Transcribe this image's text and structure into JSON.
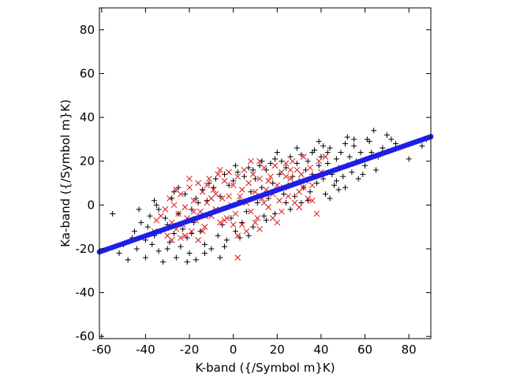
{
  "chart_data": {
    "type": "scatter",
    "xlabel": "K-band ({/Symbol m}K)",
    "ylabel": "Ka-band ({/Symbol m}K)",
    "xlim": [
      -61,
      90
    ],
    "ylim": [
      -61,
      90
    ],
    "xticks": [
      "-60",
      "-40",
      "-20",
      "0",
      "20",
      "40",
      "60",
      "80"
    ],
    "yticks": [
      "-60",
      "-40",
      "-20",
      "0",
      "20",
      "40",
      "60",
      "80"
    ],
    "grid": false,
    "legend": "none",
    "series": [
      {
        "marker": "plus",
        "color": "#000000",
        "points": [
          [
            -55,
            -4
          ],
          [
            -52,
            -22
          ],
          [
            -50,
            -18
          ],
          [
            -48,
            -25
          ],
          [
            -46,
            -15
          ],
          [
            -45,
            -12
          ],
          [
            -44,
            -20
          ],
          [
            -42,
            -8
          ],
          [
            -40,
            -16
          ],
          [
            -39,
            -10
          ],
          [
            -38,
            -5
          ],
          [
            -37,
            -18
          ],
          [
            -36,
            -14
          ],
          [
            -35,
            0
          ],
          [
            -34,
            -21
          ],
          [
            -33,
            -12
          ],
          [
            -32,
            -26
          ],
          [
            -31,
            -6
          ],
          [
            -30,
            -9
          ],
          [
            -29,
            -17
          ],
          [
            -28,
            3
          ],
          [
            -27,
            -13
          ],
          [
            -26,
            -24
          ],
          [
            -25,
            -4
          ],
          [
            -24,
            -19
          ],
          [
            -23,
            -11
          ],
          [
            -22,
            5
          ],
          [
            -21,
            -15
          ],
          [
            -20,
            -22
          ],
          [
            -19,
            -2
          ],
          [
            -18,
            -8
          ],
          [
            -17,
            -25
          ],
          [
            -16,
            1
          ],
          [
            -15,
            -12
          ],
          [
            -14,
            7
          ],
          [
            -13,
            -18
          ],
          [
            -12,
            -5
          ],
          [
            -11,
            10
          ],
          [
            -10,
            -20
          ],
          [
            -9,
            -3
          ],
          [
            -8,
            12
          ],
          [
            -7,
            -14
          ],
          [
            -6,
            4
          ],
          [
            -5,
            -9
          ],
          [
            -4,
            14
          ],
          [
            -3,
            -16
          ],
          [
            -2,
            9
          ],
          [
            -1,
            -6
          ],
          [
            0,
            11
          ],
          [
            1,
            -12
          ],
          [
            2,
            15
          ],
          [
            3,
            2
          ],
          [
            4,
            -8
          ],
          [
            5,
            13
          ],
          [
            6,
            -3
          ],
          [
            7,
            17
          ],
          [
            8,
            6
          ],
          [
            9,
            -10
          ],
          [
            10,
            12
          ],
          [
            11,
            1
          ],
          [
            12,
            18
          ],
          [
            13,
            8
          ],
          [
            14,
            -5
          ],
          [
            15,
            16
          ],
          [
            16,
            3
          ],
          [
            17,
            19
          ],
          [
            18,
            10
          ],
          [
            19,
            21
          ],
          [
            20,
            7
          ],
          [
            21,
            14
          ],
          [
            22,
            20
          ],
          [
            23,
            5
          ],
          [
            24,
            17
          ],
          [
            25,
            9
          ],
          [
            26,
            22
          ],
          [
            27,
            13
          ],
          [
            28,
            4
          ],
          [
            29,
            19
          ],
          [
            30,
            11
          ],
          [
            31,
            23
          ],
          [
            32,
            8
          ],
          [
            33,
            16
          ],
          [
            34,
            20
          ],
          [
            35,
            6
          ],
          [
            36,
            14
          ],
          [
            37,
            25
          ],
          [
            38,
            10
          ],
          [
            39,
            18
          ],
          [
            40,
            22
          ],
          [
            41,
            12
          ],
          [
            42,
            5
          ],
          [
            43,
            19
          ],
          [
            44,
            26
          ],
          [
            45,
            14
          ],
          [
            46,
            9
          ],
          [
            47,
            21
          ],
          [
            48,
            17
          ],
          [
            49,
            24
          ],
          [
            50,
            13
          ],
          [
            51,
            28
          ],
          [
            52,
            18
          ],
          [
            53,
            22
          ],
          [
            54,
            15
          ],
          [
            55,
            27
          ],
          [
            56,
            20
          ],
          [
            58,
            24
          ],
          [
            60,
            18
          ],
          [
            62,
            29
          ],
          [
            64,
            34
          ],
          [
            66,
            22
          ],
          [
            68,
            26
          ],
          [
            70,
            32
          ],
          [
            72,
            30
          ],
          [
            74,
            28
          ],
          [
            80,
            21
          ],
          [
            86,
            27
          ],
          [
            88,
            30
          ],
          [
            -43,
            -2
          ],
          [
            -36,
            2
          ],
          [
            -30,
            -20
          ],
          [
            -27,
            6
          ],
          [
            -21,
            -26
          ],
          [
            -17,
            3
          ],
          [
            -13,
            -22
          ],
          [
            -9,
            8
          ],
          [
            -4,
            -19
          ],
          [
            3,
            -15
          ],
          [
            9,
            16
          ],
          [
            15,
            -7
          ],
          [
            20,
            24
          ],
          [
            26,
            -2
          ],
          [
            31,
            1
          ],
          [
            36,
            24
          ],
          [
            41,
            27
          ],
          [
            44,
            3
          ],
          [
            48,
            7
          ],
          [
            52,
            31
          ],
          [
            57,
            12
          ],
          [
            61,
            30
          ],
          [
            65,
            16
          ],
          [
            -40,
            -24
          ],
          [
            -34,
            -2
          ],
          [
            -25,
            8
          ],
          [
            -19,
            -13
          ],
          [
            -12,
            2
          ],
          [
            -6,
            -24
          ],
          [
            1,
            18
          ],
          [
            7,
            -14
          ],
          [
            13,
            20
          ],
          [
            19,
            -4
          ],
          [
            24,
            1
          ],
          [
            29,
            26
          ],
          [
            34,
            2
          ],
          [
            39,
            29
          ],
          [
            43,
            24
          ],
          [
            47,
            11
          ],
          [
            51,
            8
          ],
          [
            55,
            30
          ],
          [
            59,
            14
          ],
          [
            63,
            24
          ]
        ]
      },
      {
        "marker": "cross",
        "color": "#dd1111",
        "points": [
          [
            -36,
            -12
          ],
          [
            -33,
            -5
          ],
          [
            -31,
            -2
          ],
          [
            -30,
            -14
          ],
          [
            -28,
            -8
          ],
          [
            -27,
            0
          ],
          [
            -26,
            -11
          ],
          [
            -25,
            -4
          ],
          [
            -24,
            5
          ],
          [
            -23,
            -9
          ],
          [
            -22,
            -1
          ],
          [
            -21,
            -6
          ],
          [
            -20,
            8
          ],
          [
            -19,
            -12
          ],
          [
            -18,
            2
          ],
          [
            -17,
            -7
          ],
          [
            -16,
            10
          ],
          [
            -15,
            -3
          ],
          [
            -14,
            6
          ],
          [
            -13,
            -10
          ],
          [
            -12,
            1
          ],
          [
            -11,
            12
          ],
          [
            -10,
            -5
          ],
          [
            -9,
            7
          ],
          [
            -8,
            -2
          ],
          [
            -7,
            14
          ],
          [
            -6,
            -8
          ],
          [
            -5,
            3
          ],
          [
            -4,
            11
          ],
          [
            -3,
            -6
          ],
          [
            -2,
            15
          ],
          [
            -1,
            0
          ],
          [
            0,
            9
          ],
          [
            1,
            -4
          ],
          [
            2,
            13
          ],
          [
            2,
            -24
          ],
          [
            3,
            4
          ],
          [
            4,
            -9
          ],
          [
            5,
            16
          ],
          [
            6,
            1
          ],
          [
            7,
            10
          ],
          [
            8,
            -3
          ],
          [
            9,
            14
          ],
          [
            10,
            6
          ],
          [
            11,
            -6
          ],
          [
            12,
            12
          ],
          [
            13,
            3
          ],
          [
            14,
            17
          ],
          [
            15,
            7
          ],
          [
            16,
            -1
          ],
          [
            17,
            13
          ],
          [
            18,
            5
          ],
          [
            19,
            18
          ],
          [
            20,
            9
          ],
          [
            21,
            2
          ],
          [
            22,
            15
          ],
          [
            23,
            8
          ],
          [
            24,
            19
          ],
          [
            25,
            4
          ],
          [
            26,
            12
          ],
          [
            27,
            20
          ],
          [
            28,
            10
          ],
          [
            29,
            16
          ],
          [
            30,
            6
          ],
          [
            31,
            14
          ],
          [
            32,
            22
          ],
          [
            33,
            11
          ],
          [
            34,
            3
          ],
          [
            35,
            17
          ],
          [
            36,
            9
          ],
          [
            37,
            13
          ],
          [
            38,
            -4
          ],
          [
            39,
            20
          ],
          [
            40,
            15
          ],
          [
            42,
            22
          ],
          [
            -29,
            3
          ],
          [
            -24,
            -15
          ],
          [
            -18,
            -3
          ],
          [
            -12,
            9
          ],
          [
            -6,
            16
          ],
          [
            0,
            -9
          ],
          [
            6,
            -12
          ],
          [
            12,
            20
          ],
          [
            18,
            -6
          ],
          [
            24,
            13
          ],
          [
            -35,
            -7
          ],
          [
            -20,
            12
          ],
          [
            -8,
            5
          ],
          [
            4,
            7
          ],
          [
            16,
            11
          ],
          [
            28,
            1
          ],
          [
            -14,
            -12
          ],
          [
            -2,
            4
          ],
          [
            10,
            -8
          ],
          [
            22,
            -3
          ],
          [
            -26,
            7
          ],
          [
            -10,
            3
          ],
          [
            8,
            20
          ],
          [
            20,
            -8
          ],
          [
            32,
            8
          ],
          [
            -22,
            -14
          ],
          [
            -4,
            -7
          ],
          [
            14,
            1
          ],
          [
            26,
            16
          ],
          [
            36,
            2
          ],
          [
            -16,
            -16
          ],
          [
            -28,
            -16
          ],
          [
            2,
            -14
          ],
          [
            30,
            -1
          ],
          [
            12,
            -11
          ]
        ]
      },
      {
        "marker": "dot",
        "color": "#1e1ee6",
        "x": [
          -61,
          90
        ],
        "y": [
          -21.4,
          31.2
        ]
      }
    ]
  }
}
